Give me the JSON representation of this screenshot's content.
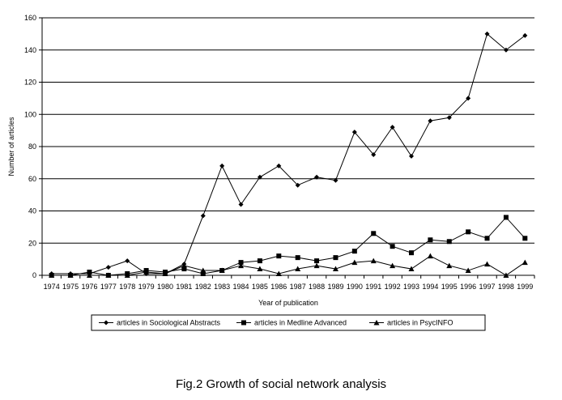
{
  "caption": "Fig.2  Growth of social network analysis",
  "colors": {
    "line": "#000000",
    "grid": "#000000",
    "background": "#ffffff"
  },
  "chart_data": {
    "type": "line",
    "title": "",
    "xlabel": "Year of publication",
    "ylabel": "Number of articles",
    "ylim": [
      0,
      160
    ],
    "yticks": [
      0,
      20,
      40,
      60,
      80,
      100,
      120,
      140,
      160
    ],
    "grid": "horizontal",
    "legend_position": "bottom",
    "categories": [
      "1974",
      "1975",
      "1976",
      "1977",
      "1978",
      "1979",
      "1980",
      "1981",
      "1982",
      "1983",
      "1984",
      "1985",
      "1986",
      "1987",
      "1988",
      "1989",
      "1990",
      "1991",
      "1992",
      "1993",
      "1994",
      "1995",
      "1996",
      "1997",
      "1998",
      "1999"
    ],
    "series": [
      {
        "name": "articles in Sociological Abstracts",
        "marker": "diamond",
        "values": [
          1,
          1,
          1,
          5,
          9,
          1,
          1,
          7,
          37,
          68,
          44,
          61,
          68,
          56,
          61,
          59,
          89,
          75,
          92,
          74,
          96,
          98,
          110,
          150,
          140,
          149
        ]
      },
      {
        "name": "articles in Medline Advanced",
        "marker": "square",
        "values": [
          0,
          0,
          2,
          0,
          1,
          3,
          2,
          4,
          1,
          3,
          8,
          9,
          12,
          11,
          9,
          11,
          15,
          26,
          18,
          14,
          22,
          21,
          27,
          23,
          36,
          23
        ]
      },
      {
        "name": "articles in PsycINFO",
        "marker": "triangle",
        "values": [
          0,
          0,
          0,
          0,
          0,
          2,
          1,
          6,
          3,
          3,
          6,
          4,
          1,
          4,
          6,
          4,
          8,
          9,
          6,
          4,
          12,
          6,
          3,
          7,
          0,
          8
        ]
      }
    ]
  }
}
